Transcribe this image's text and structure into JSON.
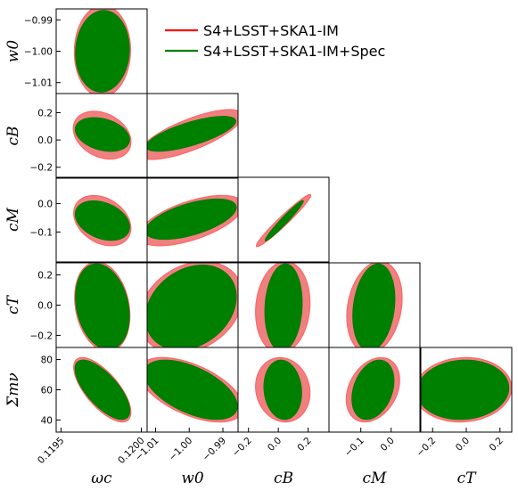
{
  "chart_data": {
    "type": "triangle",
    "parameters": [
      {
        "key": "wc",
        "label": "ω_c",
        "label_display": "ωc",
        "tick_values": [
          0.1195,
          0.12
        ],
        "tick_labels": [
          "0.1195",
          "0.1200"
        ]
      },
      {
        "key": "w0",
        "label": "w_0",
        "label_display": "w0",
        "tick_values": [
          -1.01,
          -1.0,
          -0.99
        ],
        "tick_labels": [
          "−1.01",
          "−1.00",
          "−0.99"
        ]
      },
      {
        "key": "cB",
        "label": "c_B",
        "label_display": "cB",
        "tick_values": [
          -0.2,
          0.0,
          0.2
        ],
        "tick_labels": [
          "−0.2",
          "0.0",
          "0.2"
        ]
      },
      {
        "key": "cM",
        "label": "c_M",
        "label_display": "cM",
        "tick_values": [
          -0.1,
          0.0
        ],
        "tick_labels": [
          "−0.1",
          "0.0"
        ]
      },
      {
        "key": "cT",
        "label": "c_T",
        "label_display": "cT",
        "tick_values": [
          -0.2,
          0.0,
          0.2
        ],
        "tick_labels": [
          "−0.2",
          "0.0",
          "0.2"
        ]
      },
      {
        "key": "mnu",
        "label": "Σm_ν",
        "label_display": "Σmν",
        "tick_values": [
          40,
          60,
          80
        ],
        "tick_labels": [
          "40",
          "60",
          "80"
        ]
      }
    ],
    "legend": {
      "placement": "top-right",
      "entries": [
        {
          "name": "S4+LSST+SKA1-IM",
          "color": "#ff0000"
        },
        {
          "name": "S4+LSST+SKA1-IM+Spec",
          "color": "#008000"
        }
      ]
    },
    "fill_colors": {
      "red": "#f08080",
      "red_edge": "#ff6666",
      "green": "#008000"
    },
    "panels": [
      {
        "x": "wc",
        "y": "w0",
        "red": {
          "cx": 0.119758,
          "cy": -0.99995,
          "sx": 0.000115,
          "sy": 0.0096,
          "rho": 0.02
        },
        "green": {
          "cx": 0.119758,
          "cy": -1.0,
          "sx": 0.000111,
          "sy": 0.0086,
          "rho": 0.05
        }
      },
      {
        "x": "wc",
        "y": "cB",
        "red": {
          "cx": 0.119756,
          "cy": 0.035,
          "sx": 0.000118,
          "sy": 0.115,
          "rho": -0.28
        },
        "green": {
          "cx": 0.119758,
          "cy": 0.04,
          "sx": 0.000112,
          "sy": 0.082,
          "rho": -0.3
        }
      },
      {
        "x": "w0",
        "y": "cB",
        "red": {
          "cx": -0.9995,
          "cy": 0.04,
          "sx": 0.0101,
          "sy": 0.12,
          "rho": 0.75
        },
        "green": {
          "cx": -0.9995,
          "cy": 0.045,
          "sx": 0.0088,
          "sy": 0.085,
          "rho": 0.72
        }
      },
      {
        "x": "wc",
        "y": "cM",
        "red": {
          "cx": 0.119757,
          "cy": -0.06,
          "sx": 0.000117,
          "sy": 0.058,
          "rho": -0.3
        },
        "green": {
          "cx": 0.119758,
          "cy": -0.06,
          "sx": 0.000112,
          "sy": 0.046,
          "rho": -0.32
        }
      },
      {
        "x": "w0",
        "y": "cM",
        "red": {
          "cx": -0.9995,
          "cy": -0.06,
          "sx": 0.0102,
          "sy": 0.058,
          "rho": 0.6
        },
        "green": {
          "cx": -0.9995,
          "cy": -0.055,
          "sx": 0.0089,
          "sy": 0.047,
          "rho": 0.58
        }
      },
      {
        "x": "cB",
        "y": "cM",
        "red": {
          "cx": 0.035,
          "cy": -0.06,
          "sx": 0.12,
          "sy": 0.06,
          "rho": 0.97
        },
        "green": {
          "cx": 0.04,
          "cy": -0.06,
          "sx": 0.085,
          "sy": 0.047,
          "rho": 0.97
        }
      },
      {
        "x": "wc",
        "y": "cT",
        "red": {
          "cx": 0.119757,
          "cy": -0.01,
          "sx": 0.000113,
          "sy": 0.195,
          "rho": -0.2
        },
        "green": {
          "cx": 0.119758,
          "cy": -0.01,
          "sx": 0.000111,
          "sy": 0.187,
          "rho": -0.22
        }
      },
      {
        "x": "w0",
        "y": "cT",
        "red": {
          "cx": -0.9995,
          "cy": -0.015,
          "sx": 0.0101,
          "sy": 0.2,
          "rho": 0.25
        },
        "green": {
          "cx": -0.9995,
          "cy": -0.015,
          "sx": 0.0089,
          "sy": 0.185,
          "rho": 0.25
        }
      },
      {
        "x": "cB",
        "y": "cT",
        "red": {
          "cx": 0.03,
          "cy": -0.015,
          "sx": 0.12,
          "sy": 0.2,
          "rho": 0.1
        },
        "green": {
          "cx": 0.035,
          "cy": -0.015,
          "sx": 0.083,
          "sy": 0.19,
          "rho": 0.1
        }
      },
      {
        "x": "cM",
        "y": "cT",
        "red": {
          "cx": -0.055,
          "cy": -0.015,
          "sx": 0.06,
          "sy": 0.2,
          "rho": 0.2
        },
        "green": {
          "cx": -0.057,
          "cy": -0.015,
          "sx": 0.046,
          "sy": 0.19,
          "rho": 0.2
        }
      },
      {
        "x": "wc",
        "y": "mnu",
        "red": {
          "cx": 0.119757,
          "cy": 60,
          "sx": 0.000117,
          "sy": 14,
          "rho": -0.7
        },
        "green": {
          "cx": 0.119758,
          "cy": 60,
          "sx": 0.000113,
          "sy": 13,
          "rho": -0.7
        }
      },
      {
        "x": "w0",
        "y": "mnu",
        "red": {
          "cx": -0.9995,
          "cy": 60,
          "sx": 0.0102,
          "sy": 14,
          "rho": -0.55
        },
        "green": {
          "cx": -0.9995,
          "cy": 60,
          "sx": 0.0091,
          "sy": 13,
          "rho": -0.55
        }
      },
      {
        "x": "cB",
        "y": "mnu",
        "red": {
          "cx": 0.03,
          "cy": 60,
          "sx": 0.12,
          "sy": 14,
          "rho": -0.1
        },
        "green": {
          "cx": 0.03,
          "cy": 60,
          "sx": 0.084,
          "sy": 13,
          "rho": -0.1
        }
      },
      {
        "x": "cM",
        "y": "mnu",
        "red": {
          "cx": -0.06,
          "cy": 60,
          "sx": 0.058,
          "sy": 14,
          "rho": 0.3
        },
        "green": {
          "cx": -0.06,
          "cy": 60,
          "sx": 0.046,
          "sy": 13,
          "rho": 0.3
        }
      },
      {
        "x": "cT",
        "y": "mnu",
        "red": {
          "cx": -0.02,
          "cy": 60,
          "sx": 0.19,
          "sy": 14,
          "rho": 0.06
        },
        "green": {
          "cx": -0.02,
          "cy": 60,
          "sx": 0.18,
          "sy": 13,
          "rho": 0.06
        }
      }
    ]
  }
}
